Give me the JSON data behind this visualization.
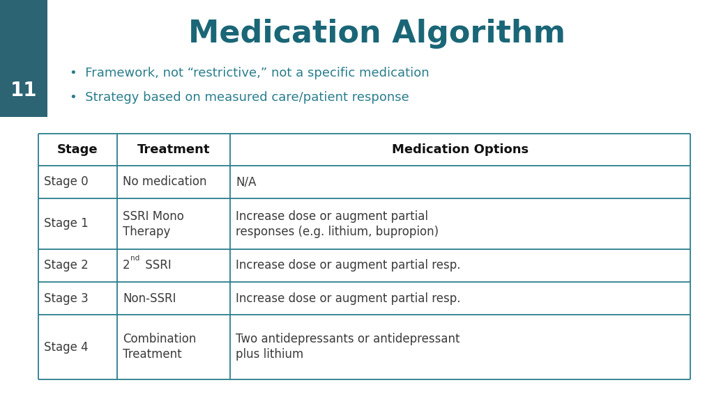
{
  "title": "Medication Algorithm",
  "title_color": "#1a6677",
  "bullet_points": [
    "Framework, not “restrictive,” not a specific medication",
    "Strategy based on measured care/patient response"
  ],
  "bullet_color": "#2a7d8c",
  "slide_number": "11",
  "slide_number_bg": "#2d6474",
  "background_color": "#ffffff",
  "table_border_color": "#2a7d8c",
  "table_text_color": "#3a3a3a",
  "col_headers": [
    "Stage",
    "Treatment",
    "Medication Options"
  ],
  "rows": [
    [
      "Stage 0",
      "No medication",
      "N/A"
    ],
    [
      "Stage 1",
      "SSRI Mono\nTherapy",
      "Increase dose or augment partial\nresponses (e.g. lithium, bupropion)"
    ],
    [
      "Stage 2",
      "2nd_SSRI",
      "Increase dose or augment partial resp."
    ],
    [
      "Stage 3",
      "Non-SSRI",
      "Increase dose or augment partial resp."
    ],
    [
      "Stage 4",
      "Combination\nTreatment",
      "Two antidepressants or antidepressant\nplus lithium"
    ]
  ]
}
